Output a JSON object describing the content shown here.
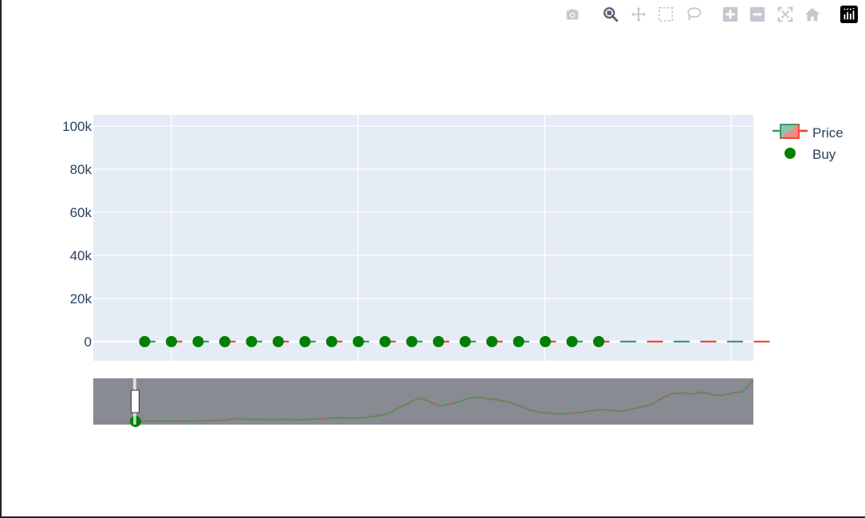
{
  "modebar": {
    "buttons": [
      {
        "name": "camera-icon",
        "label": "Download plot as a png"
      },
      {
        "name": "zoom-icon",
        "label": "Zoom"
      },
      {
        "name": "pan-icon",
        "label": "Pan"
      },
      {
        "name": "box-select-icon",
        "label": "Box Select"
      },
      {
        "name": "lasso-select-icon",
        "label": "Lasso Select"
      },
      {
        "name": "zoom-in-icon",
        "label": "Zoom in"
      },
      {
        "name": "zoom-out-icon",
        "label": "Zoom out"
      },
      {
        "name": "autoscale-icon",
        "label": "Autoscale"
      },
      {
        "name": "reset-axes-icon",
        "label": "Reset axes"
      },
      {
        "name": "plotly-logo-icon",
        "label": "Produced with Plotly"
      }
    ],
    "active": "zoom-icon"
  },
  "colors": {
    "plot_bg": "#e5ecf6",
    "grid": "#ffffff",
    "increasing": "#3d9970",
    "decreasing": "#ff4136",
    "buy": "#008000",
    "rangeslider_bg": "#888b91",
    "text": "#2a3f5f"
  },
  "chart_data": {
    "type": "scatter",
    "title": "",
    "xlabel": "",
    "ylabel": "",
    "y_ticks": [
      "100k",
      "80k",
      "60k",
      "40k",
      "20k",
      "0"
    ],
    "y_tick_values": [
      100000,
      80000,
      60000,
      40000,
      20000,
      0
    ],
    "ylim": [
      -8000,
      105000
    ],
    "grid": true,
    "legend_position": "top-right",
    "legend": [
      "Price",
      "Buy"
    ],
    "series": [
      {
        "name": "Price",
        "kind": "candlestick",
        "values": [
          0,
          0,
          0,
          0,
          0,
          0,
          0,
          0,
          0,
          0,
          0,
          0,
          0,
          0,
          0,
          0,
          0,
          0,
          0,
          0,
          0,
          0,
          0,
          0
        ]
      },
      {
        "name": "Buy",
        "kind": "markers",
        "values": [
          0,
          0,
          0,
          0,
          0,
          0,
          0,
          0,
          0,
          0,
          0,
          0,
          0,
          0,
          0,
          0,
          0,
          0
        ]
      }
    ],
    "rangeslider": {
      "shown": true,
      "overview_series": [
        0.3,
        0.4,
        0.5,
        0.4,
        0.6,
        0.8,
        1.2,
        1.6,
        2.0,
        3.5,
        7.5,
        5.0,
        5.5,
        4.8,
        4.5,
        5.2,
        4.0,
        5.0,
        6.0,
        7.5,
        9.0,
        8.0,
        8.5,
        10.5,
        14.0,
        19.0,
        33.0,
        45.0,
        57.0,
        50.0,
        38.0,
        42.0,
        48.0,
        58.0,
        60.0,
        55.0,
        52.0,
        47.0,
        38.0,
        28.0,
        22.0,
        20.0,
        18.0,
        20.0,
        22.0,
        26.0,
        29.0,
        27.0,
        25.0,
        30.0,
        35.0,
        42.0,
        56.0,
        68.0,
        70.0,
        67.0,
        72.0,
        66.0,
        64.0,
        70.0,
        73.0,
        100.0
      ],
      "overview_max": 100
    }
  }
}
